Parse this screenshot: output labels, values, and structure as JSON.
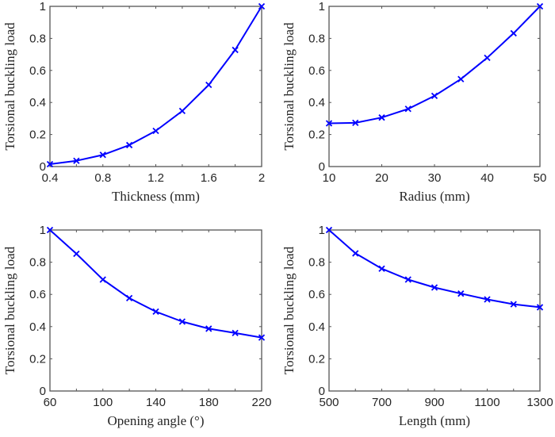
{
  "chart_data": [
    {
      "type": "line",
      "title": "",
      "xlabel": "Thickness (mm)",
      "ylabel": "Torsional buckling load",
      "xlim": [
        0.4,
        2
      ],
      "ylim": [
        0,
        1
      ],
      "xticks": [
        0.4,
        0.8,
        1.2,
        1.6,
        2
      ],
      "xtick_labels": [
        "0.4",
        "0.8",
        "1.2",
        "1.6",
        "2"
      ],
      "xticks_minor": [
        0.6,
        1.0,
        1.4,
        1.8
      ],
      "yticks": [
        0,
        0.2,
        0.4,
        0.6,
        0.8,
        1
      ],
      "ytick_labels": [
        "0",
        "0.2",
        "0.4",
        "0.6",
        "0.8",
        "1"
      ],
      "grid": false,
      "series": [
        {
          "name": "Thickness",
          "color": "#0000ff",
          "marker": "x",
          "x": [
            0.4,
            0.6,
            0.8,
            1.0,
            1.2,
            1.4,
            1.6,
            1.8,
            2.0
          ],
          "y": [
            0.015,
            0.036,
            0.073,
            0.134,
            0.223,
            0.347,
            0.51,
            0.728,
            1.0
          ]
        }
      ]
    },
    {
      "type": "line",
      "title": "",
      "xlabel": "Radius (mm)",
      "ylabel": "Torsional buckling load",
      "xlim": [
        10,
        50
      ],
      "ylim": [
        0,
        1
      ],
      "xticks": [
        10,
        20,
        30,
        40,
        50
      ],
      "xtick_labels": [
        "10",
        "20",
        "30",
        "40",
        "50"
      ],
      "xticks_minor": [],
      "yticks": [
        0,
        0.2,
        0.4,
        0.6,
        0.8,
        1
      ],
      "ytick_labels": [
        "0",
        "0.2",
        "0.4",
        "0.6",
        "0.8",
        "1"
      ],
      "grid": false,
      "series": [
        {
          "name": "Radius",
          "color": "#0000ff",
          "marker": "x",
          "x": [
            10,
            15,
            20,
            25,
            30,
            35,
            40,
            45,
            50
          ],
          "y": [
            0.27,
            0.273,
            0.306,
            0.36,
            0.441,
            0.546,
            0.679,
            0.832,
            1.0
          ]
        }
      ]
    },
    {
      "type": "line",
      "title": "",
      "xlabel": "Opening angle (°)",
      "ylabel": "Torsional buckling load",
      "xlim": [
        60,
        220
      ],
      "ylim": [
        0,
        1
      ],
      "xticks": [
        60,
        100,
        140,
        180,
        220
      ],
      "xtick_labels": [
        "60",
        "100",
        "140",
        "180",
        "220"
      ],
      "xticks_minor": [
        80,
        120,
        160,
        200
      ],
      "yticks": [
        0,
        0.2,
        0.4,
        0.6,
        0.8,
        1
      ],
      "ytick_labels": [
        "0",
        "0.2",
        "0.4",
        "0.6",
        "0.8",
        "1"
      ],
      "grid": false,
      "series": [
        {
          "name": "Opening angle",
          "color": "#0000ff",
          "marker": "x",
          "x": [
            60,
            80,
            100,
            120,
            140,
            160,
            180,
            200,
            220
          ],
          "y": [
            1.0,
            0.852,
            0.692,
            0.577,
            0.493,
            0.431,
            0.387,
            0.36,
            0.332
          ]
        }
      ]
    },
    {
      "type": "line",
      "title": "",
      "xlabel": "Length (mm)",
      "ylabel": "Torsional buckling load",
      "xlim": [
        500,
        1300
      ],
      "ylim": [
        0,
        1
      ],
      "xticks": [
        500,
        700,
        900,
        1100,
        1300
      ],
      "xtick_labels": [
        "500",
        "700",
        "900",
        "1100",
        "1300"
      ],
      "xticks_minor": [
        600,
        800,
        1000,
        1200
      ],
      "yticks": [
        0,
        0.2,
        0.4,
        0.6,
        0.8,
        1
      ],
      "ytick_labels": [
        "0",
        "0.2",
        "0.4",
        "0.6",
        "0.8",
        "1"
      ],
      "grid": false,
      "series": [
        {
          "name": "Length",
          "color": "#0000ff",
          "marker": "x",
          "x": [
            500,
            600,
            700,
            800,
            900,
            1000,
            1100,
            1200,
            1300
          ],
          "y": [
            1.0,
            0.855,
            0.76,
            0.692,
            0.643,
            0.605,
            0.569,
            0.539,
            0.52
          ]
        }
      ]
    }
  ]
}
